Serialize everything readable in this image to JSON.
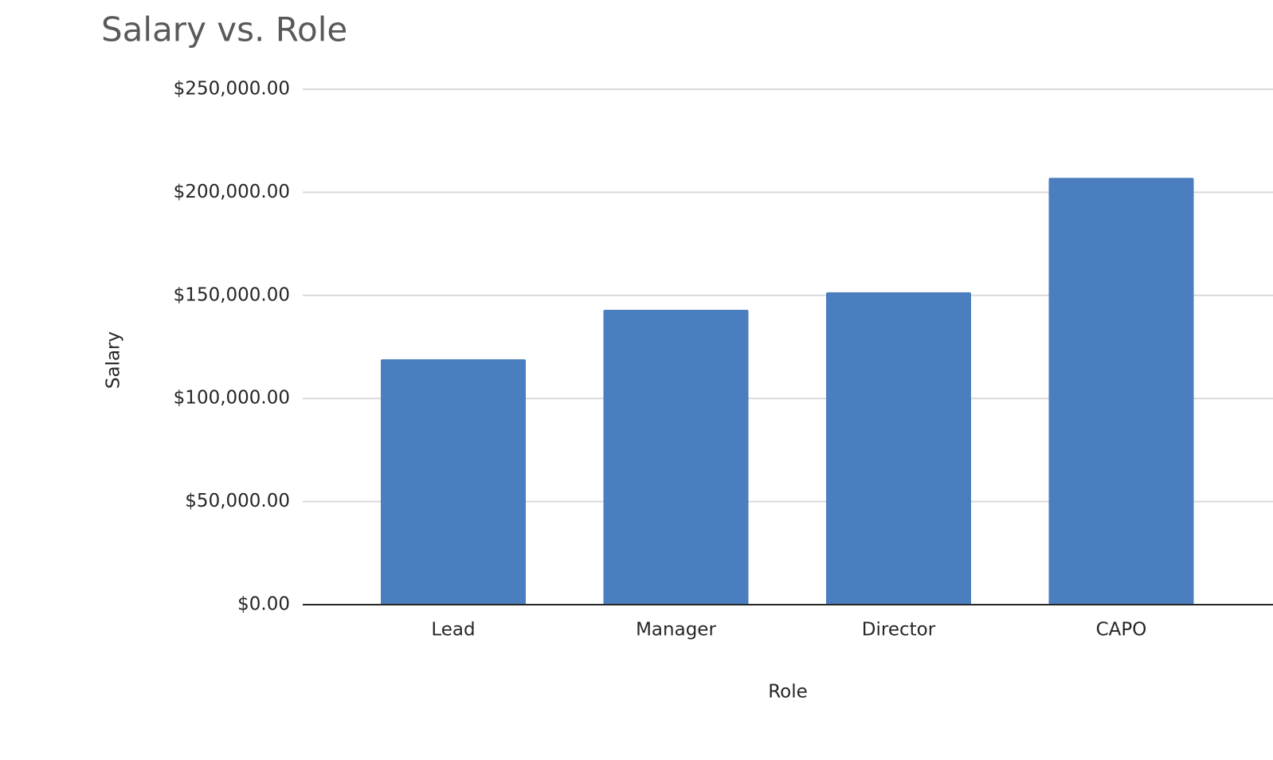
{
  "chart_data": {
    "type": "bar",
    "title": "Salary vs. Role",
    "x_label": "Role",
    "y_label": "Salary",
    "categories": [
      "Lead",
      "Manager",
      "Director",
      "CAPO"
    ],
    "values": [
      119000,
      143000,
      151500,
      207000
    ],
    "color": "#4a7ebf",
    "ylim": [
      0,
      250000
    ],
    "yticks": [
      {
        "value": 0,
        "label": "$0.00"
      },
      {
        "value": 50000,
        "label": "$50,000.00"
      },
      {
        "value": 100000,
        "label": "$100,000.00"
      },
      {
        "value": 150000,
        "label": "$150,000.00"
      },
      {
        "value": 200000,
        "label": "$200,000.00"
      },
      {
        "value": 250000,
        "label": "$250,000.00"
      }
    ],
    "grid": true
  }
}
